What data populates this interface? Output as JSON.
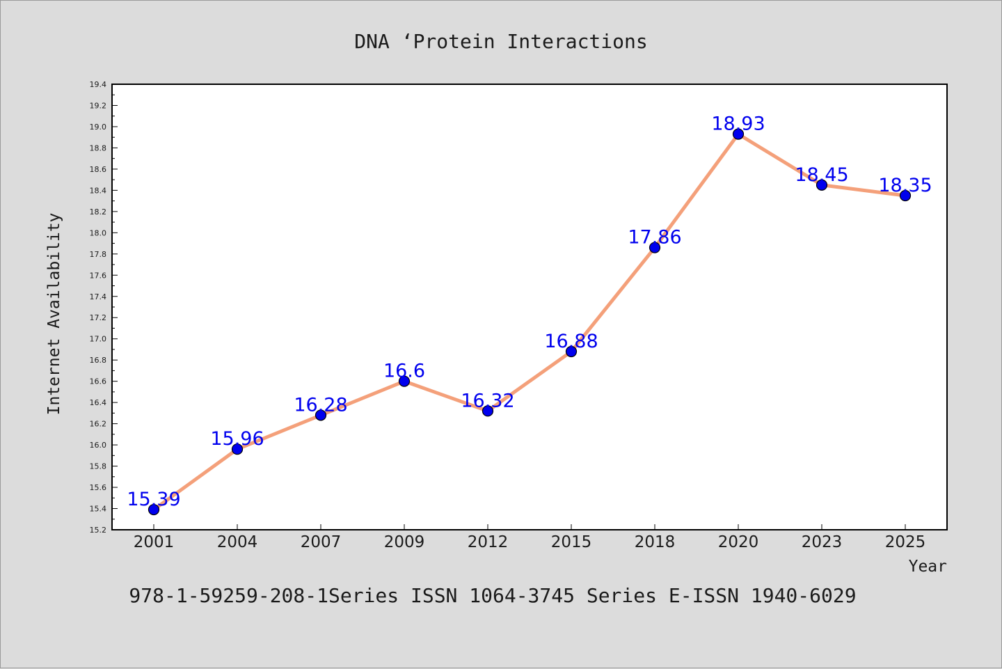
{
  "chart_data": {
    "type": "line",
    "title": "DNA ‘Protein Interactions",
    "xlabel": "Year",
    "ylabel": "Internet Availability",
    "footer": "978-1-59259-208-1Series ISSN 1064-3745 Series E-ISSN 1940-6029",
    "categories": [
      "2001",
      "2004",
      "2007",
      "2009",
      "2012",
      "2015",
      "2018",
      "2020",
      "2023",
      "2025"
    ],
    "series": [
      {
        "values": [
          15.39,
          15.96,
          16.28,
          16.6,
          16.32,
          16.88,
          17.86,
          18.93,
          18.45,
          18.35
        ],
        "data_labels": [
          "15.39",
          "15.96",
          "16.28",
          "16.6",
          "16.32",
          "16.88",
          "17.86",
          "18.93",
          "18.45",
          "18.35"
        ]
      }
    ],
    "ylim": [
      15.2,
      19.4
    ],
    "yticks": [
      "15.2",
      "15.4",
      "15.6",
      "15.8",
      "16.0",
      "16.2",
      "16.4",
      "16.6",
      "16.8",
      "17.0",
      "17.2",
      "17.4",
      "17.6",
      "17.8",
      "18.0",
      "18.2",
      "18.4",
      "18.6",
      "18.8",
      "19.0",
      "19.2",
      "19.4"
    ],
    "grid": false,
    "legend": "none",
    "colors": {
      "background": "#dcdcdc",
      "plot_background": "#ffffff",
      "line": "#f4a07a",
      "marker": "#0000ee",
      "data_label": "#0000ee",
      "text": "#1a1a1a"
    }
  }
}
